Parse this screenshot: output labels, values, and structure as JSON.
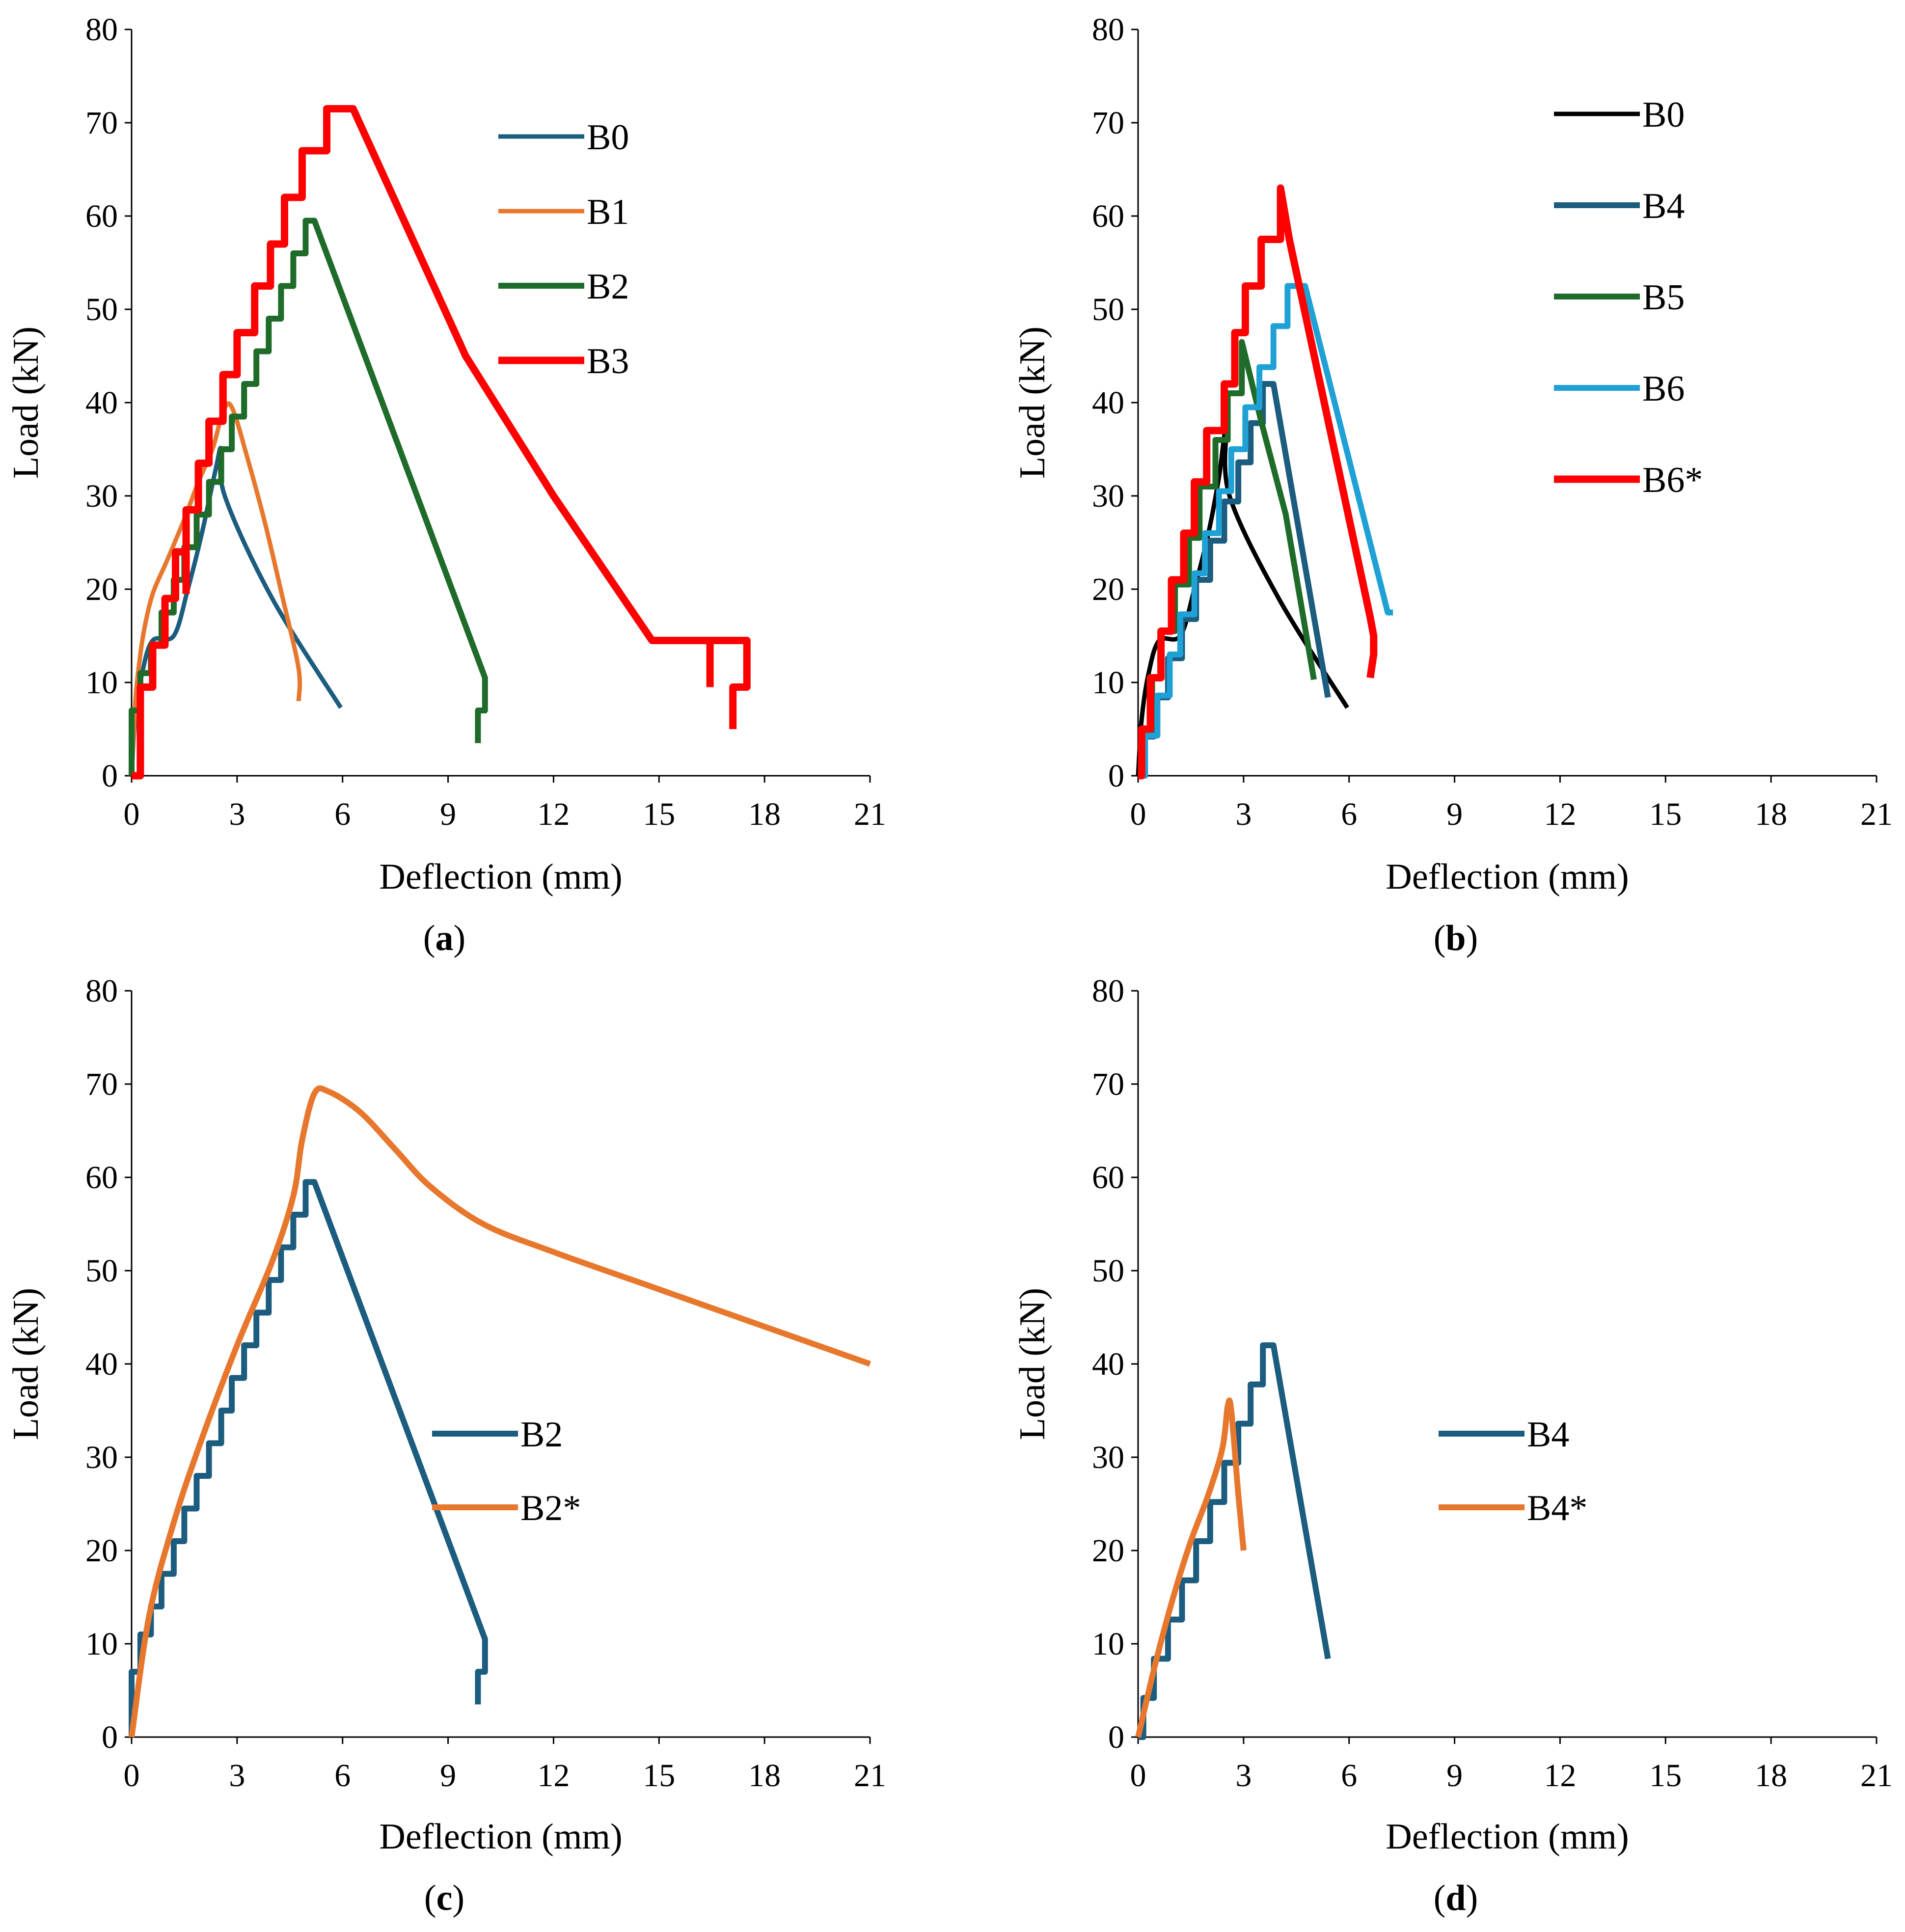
{
  "chart_data": [
    {
      "type": "line",
      "panel": "a",
      "caption_open": "(",
      "caption_letter": "a",
      "caption_close": ")",
      "xlabel": "Deflection (mm)",
      "ylabel": "Load (kN)",
      "xlim": [
        0,
        21
      ],
      "ylim": [
        0,
        80
      ],
      "xticks": [
        0,
        3,
        6,
        9,
        12,
        15,
        18,
        21
      ],
      "yticks": [
        0,
        10,
        20,
        30,
        40,
        50,
        60,
        70,
        80
      ],
      "grid": false,
      "legend_position": "top-right",
      "series": [
        {
          "name": "B0",
          "color": "#1b5c7f",
          "width": 3,
          "mode": "smooth",
          "points": [
            [
              0,
              0
            ],
            [
              0.1,
              6
            ],
            [
              0.3,
              11
            ],
            [
              0.6,
              14.5
            ],
            [
              1.2,
              15
            ],
            [
              1.6,
              20
            ],
            [
              2.0,
              26
            ],
            [
              2.4,
              33
            ],
            [
              2.55,
              35
            ],
            [
              2.65,
              30
            ],
            [
              4,
              19
            ],
            [
              5.95,
              7.3
            ]
          ]
        },
        {
          "name": "B1",
          "color": "#e8772e",
          "width": 3,
          "mode": "smooth",
          "points": [
            [
              0,
              0
            ],
            [
              0.1,
              7.5
            ],
            [
              0.2,
              11.5
            ],
            [
              0.35,
              15.5
            ],
            [
              0.6,
              19.5
            ],
            [
              1.0,
              23
            ],
            [
              1.5,
              27.5
            ],
            [
              1.9,
              31.5
            ],
            [
              2.3,
              35
            ],
            [
              2.6,
              39
            ],
            [
              2.85,
              39.5
            ],
            [
              3.3,
              34
            ],
            [
              3.8,
              27
            ],
            [
              4.3,
              19
            ],
            [
              4.75,
              11.5
            ],
            [
              4.75,
              8
            ]
          ]
        },
        {
          "name": "B2",
          "color": "#1e6b2a",
          "width": 4,
          "mode": "step",
          "points": [
            [
              0,
              0
            ],
            [
              0,
              7
            ],
            [
              0.25,
              11
            ],
            [
              0.55,
              14
            ],
            [
              0.85,
              17.5
            ],
            [
              1.2,
              21
            ],
            [
              1.5,
              24.5
            ],
            [
              1.85,
              28
            ],
            [
              2.2,
              31.5
            ],
            [
              2.55,
              35
            ],
            [
              2.85,
              38.5
            ],
            [
              3.2,
              42
            ],
            [
              3.55,
              45.5
            ],
            [
              3.9,
              49
            ],
            [
              4.25,
              52.5
            ],
            [
              4.6,
              56
            ],
            [
              4.95,
              59.5
            ],
            [
              5.2,
              59.5
            ],
            [
              10.05,
              10.5
            ],
            [
              10.05,
              7
            ],
            [
              9.85,
              7
            ],
            [
              9.85,
              3.5
            ]
          ]
        },
        {
          "name": "B3",
          "color": "#ff0000",
          "width": 5,
          "mode": "step",
          "points": [
            [
              0,
              0
            ],
            [
              0.25,
              9.5
            ],
            [
              0.6,
              14
            ],
            [
              0.95,
              19
            ],
            [
              1.25,
              24
            ],
            [
              1.55,
              28.5
            ],
            [
              1.9,
              33.5
            ],
            [
              2.2,
              38
            ],
            [
              2.6,
              43
            ],
            [
              3.0,
              47.5
            ],
            [
              3.5,
              52.5
            ],
            [
              3.95,
              57
            ],
            [
              4.35,
              62
            ],
            [
              4.85,
              67
            ],
            [
              5.55,
              71.5
            ],
            [
              6.3,
              71.5
            ],
            [
              9.5,
              45
            ],
            [
              12,
              30
            ],
            [
              14.8,
              14.5
            ],
            [
              17.5,
              14.5
            ],
            [
              17.5,
              9.5
            ],
            [
              17.1,
              9.5
            ],
            [
              17.1,
              5
            ]
          ],
          "drops": [
            [
              1.55,
              28.5,
              19.5
            ],
            [
              2.6,
              43,
              38
            ],
            [
              16.45,
              14.5,
              9.5
            ]
          ]
        }
      ]
    },
    {
      "type": "line",
      "panel": "b",
      "caption_open": "(",
      "caption_letter": "b",
      "caption_close": ")",
      "xlabel": "Deflection (mm)",
      "ylabel": "Load (kN)",
      "xlim": [
        0,
        21
      ],
      "ylim": [
        0,
        80
      ],
      "xticks": [
        0,
        3,
        6,
        9,
        12,
        15,
        18,
        21
      ],
      "yticks": [
        0,
        10,
        20,
        30,
        40,
        50,
        60,
        70,
        80
      ],
      "grid": false,
      "legend_position": "top-right",
      "series": [
        {
          "name": "B0",
          "color": "#000000",
          "width": 3,
          "mode": "smooth",
          "points": [
            [
              0,
              0
            ],
            [
              0.1,
              6
            ],
            [
              0.3,
              11
            ],
            [
              0.6,
              14.5
            ],
            [
              1.2,
              15
            ],
            [
              1.6,
              20
            ],
            [
              2.0,
              26
            ],
            [
              2.3,
              32
            ],
            [
              2.5,
              37
            ],
            [
              2.6,
              30
            ],
            [
              4,
              19
            ],
            [
              5.95,
              7.3
            ]
          ]
        },
        {
          "name": "B4",
          "color": "#1b5c7f",
          "width": 4,
          "mode": "step",
          "points": [
            [
              0,
              0
            ],
            [
              0.15,
              4.2
            ],
            [
              0.45,
              8.4
            ],
            [
              0.85,
              12.6
            ],
            [
              1.25,
              16.8
            ],
            [
              1.65,
              21
            ],
            [
              2.05,
              25.2
            ],
            [
              2.45,
              29.4
            ],
            [
              2.85,
              33.6
            ],
            [
              3.2,
              37.8
            ],
            [
              3.55,
              42
            ],
            [
              3.85,
              42
            ],
            [
              5.4,
              8.4
            ]
          ]
        },
        {
          "name": "B5",
          "color": "#1e6b2a",
          "width": 4,
          "mode": "step",
          "points": [
            [
              0,
              0
            ],
            [
              0.1,
              5
            ],
            [
              0.4,
              10.5
            ],
            [
              0.65,
              15.5
            ],
            [
              1.05,
              20.5
            ],
            [
              1.45,
              25.5
            ],
            [
              1.75,
              31
            ],
            [
              2.2,
              36
            ],
            [
              2.55,
              41
            ],
            [
              2.95,
              46.5
            ],
            [
              3.5,
              38
            ],
            [
              4.2,
              28
            ],
            [
              5.0,
              10.3
            ]
          ]
        },
        {
          "name": "B6",
          "color": "#1fa1d6",
          "width": 4,
          "mode": "step",
          "points": [
            [
              0,
              0
            ],
            [
              0.2,
              4.3
            ],
            [
              0.55,
              8.6
            ],
            [
              0.9,
              13
            ],
            [
              1.2,
              17.3
            ],
            [
              1.6,
              21.7
            ],
            [
              1.9,
              26
            ],
            [
              2.3,
              30.5
            ],
            [
              2.65,
              35
            ],
            [
              3.05,
              39.5
            ],
            [
              3.45,
              43.8
            ],
            [
              3.85,
              48.2
            ],
            [
              4.25,
              52.5
            ],
            [
              4.75,
              52.5
            ],
            [
              7.1,
              17.5
            ],
            [
              7.25,
              17.5
            ]
          ]
        },
        {
          "name": "B6*",
          "color": "#ff0000",
          "width": 5,
          "mode": "step",
          "points": [
            [
              0,
              0
            ],
            [
              0.1,
              5
            ],
            [
              0.35,
              10.5
            ],
            [
              0.65,
              15.5
            ],
            [
              0.95,
              21
            ],
            [
              1.3,
              26
            ],
            [
              1.6,
              31.5
            ],
            [
              1.95,
              37
            ],
            [
              2.45,
              42
            ],
            [
              2.75,
              47.5
            ],
            [
              3.05,
              52.5
            ],
            [
              3.5,
              57.5
            ],
            [
              4.05,
              63
            ],
            [
              4.3,
              57.5
            ],
            [
              6.6,
              17
            ],
            [
              6.7,
              15
            ],
            [
              6.7,
              13
            ],
            [
              6.6,
              10.5
            ]
          ]
        }
      ]
    },
    {
      "type": "line",
      "panel": "c",
      "caption_open": "(",
      "caption_letter": "c",
      "caption_close": ")",
      "xlabel": "Deflection (mm)",
      "ylabel": "Load (kN)",
      "xlim": [
        0,
        21
      ],
      "ylim": [
        0,
        80
      ],
      "xticks": [
        0,
        3,
        6,
        9,
        12,
        15,
        18,
        21
      ],
      "yticks": [
        0,
        10,
        20,
        30,
        40,
        50,
        60,
        70,
        80
      ],
      "grid": false,
      "legend_position": "center-right",
      "series": [
        {
          "name": "B2",
          "color": "#1b5c7f",
          "width": 4,
          "mode": "step",
          "points": [
            [
              0,
              0
            ],
            [
              0,
              7
            ],
            [
              0.25,
              11
            ],
            [
              0.55,
              14
            ],
            [
              0.85,
              17.5
            ],
            [
              1.2,
              21
            ],
            [
              1.5,
              24.5
            ],
            [
              1.85,
              28
            ],
            [
              2.2,
              31.5
            ],
            [
              2.55,
              35
            ],
            [
              2.85,
              38.5
            ],
            [
              3.2,
              42
            ],
            [
              3.55,
              45.5
            ],
            [
              3.9,
              49
            ],
            [
              4.25,
              52.5
            ],
            [
              4.6,
              56
            ],
            [
              4.95,
              59.5
            ],
            [
              5.2,
              59.5
            ],
            [
              10.05,
              10.5
            ],
            [
              10.05,
              7
            ],
            [
              9.85,
              7
            ],
            [
              9.85,
              3.5
            ]
          ]
        },
        {
          "name": "B2*",
          "color": "#e8772e",
          "width": 4,
          "mode": "smooth",
          "points": [
            [
              0,
              0
            ],
            [
              0.5,
              13
            ],
            [
              1.2,
              23
            ],
            [
              2,
              32
            ],
            [
              3,
              42
            ],
            [
              4,
              51
            ],
            [
              4.6,
              58
            ],
            [
              4.85,
              64
            ],
            [
              5.2,
              69
            ],
            [
              5.6,
              69.2
            ],
            [
              6.5,
              67
            ],
            [
              7.5,
              63
            ],
            [
              8.5,
              59
            ],
            [
              10,
              55
            ],
            [
              12,
              52
            ],
            [
              15,
              48
            ],
            [
              18,
              44
            ],
            [
              21,
              40
            ]
          ]
        }
      ]
    },
    {
      "type": "line",
      "panel": "d",
      "caption_open": "(",
      "caption_letter": "d",
      "caption_close": ")",
      "xlabel": "Deflection (mm)",
      "ylabel": "Load (kN)",
      "xlim": [
        0,
        21
      ],
      "ylim": [
        0,
        80
      ],
      "xticks": [
        0,
        3,
        6,
        9,
        12,
        15,
        18,
        21
      ],
      "yticks": [
        0,
        10,
        20,
        30,
        40,
        50,
        60,
        70,
        80
      ],
      "grid": false,
      "legend_position": "center-right",
      "series": [
        {
          "name": "B4",
          "color": "#1b5c7f",
          "width": 4,
          "mode": "step",
          "points": [
            [
              0,
              0
            ],
            [
              0.15,
              4.2
            ],
            [
              0.45,
              8.4
            ],
            [
              0.85,
              12.6
            ],
            [
              1.25,
              16.8
            ],
            [
              1.65,
              21
            ],
            [
              2.05,
              25.2
            ],
            [
              2.45,
              29.4
            ],
            [
              2.85,
              33.6
            ],
            [
              3.2,
              37.8
            ],
            [
              3.55,
              42
            ],
            [
              3.85,
              42
            ],
            [
              5.4,
              8.4
            ]
          ]
        },
        {
          "name": "B4*",
          "color": "#e8772e",
          "width": 4,
          "mode": "smooth",
          "points": [
            [
              0,
              0
            ],
            [
              0.5,
              8
            ],
            [
              1.0,
              15
            ],
            [
              1.5,
              21
            ],
            [
              2.0,
              26
            ],
            [
              2.4,
              31
            ],
            [
              2.55,
              35.5
            ],
            [
              2.65,
              35
            ],
            [
              2.85,
              26
            ],
            [
              3.0,
              20
            ]
          ]
        }
      ]
    }
  ]
}
